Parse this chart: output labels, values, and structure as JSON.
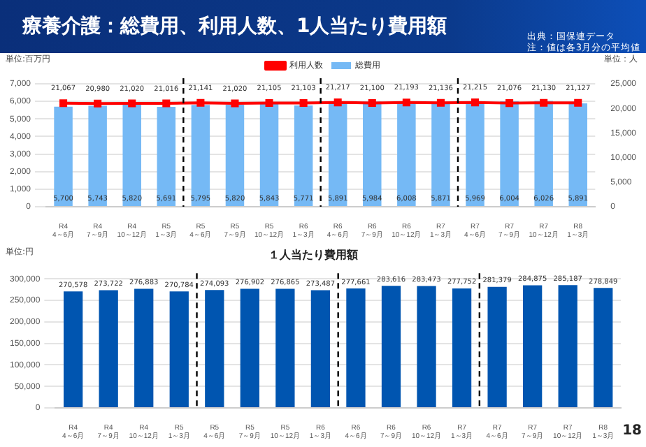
{
  "chart_data": [
    {
      "type": "bar",
      "title": "療養介護：総費用、利用人数、1人当たり費用額",
      "ylabel": "単位:百万円",
      "y2label": "単位：人",
      "annotations": [
        "出典：国保連データ",
        "注：値は各3月分の平均値"
      ],
      "categories": [
        "R4 4～6月",
        "R4 7～9月",
        "R4 10～12月",
        "R5 1～3月",
        "R5 4～6月",
        "R5 7～9月",
        "R5 10～12月",
        "R6 1～3月",
        "R6 4～6月",
        "R6 7～9月",
        "R6 10～12月",
        "R7 1～3月",
        "R7 4～6月",
        "R7 7～9月",
        "R7 10～12月",
        "R8 1～3月"
      ],
      "series": [
        {
          "name": "総費用",
          "type": "bar",
          "color": "#75b9f5",
          "values": [
            5700,
            5743,
            5820,
            5691,
            5795,
            5820,
            5843,
            5771,
            5891,
            5984,
            6008,
            5871,
            5969,
            6004,
            6026,
            5891
          ],
          "value_labels": [
            "5,700",
            "5,743",
            "5,820",
            "5,691",
            "5,795",
            "5,820",
            "5,843",
            "5,771",
            "5,891",
            "5,984",
            "6,008",
            "5,871",
            "5,969",
            "6,004",
            "6,026",
            "5,891"
          ]
        },
        {
          "name": "利用人数",
          "type": "line",
          "axis": "y2",
          "color": "#ff0000",
          "values": [
            21067,
            20980,
            21020,
            21016,
            21141,
            21020,
            21105,
            21103,
            21217,
            21100,
            21193,
            21136,
            21215,
            21076,
            21130,
            21127
          ],
          "value_labels": [
            "21,067",
            "20,980",
            "21,020",
            "21,016",
            "21,141",
            "21,020",
            "21,105",
            "21,103",
            "21,217",
            "21,100",
            "21,193",
            "21,136",
            "21,215",
            "21,076",
            "21,130",
            "21,127"
          ]
        }
      ],
      "ylim": [
        0,
        7000
      ],
      "yticks": [
        0,
        {
          "value": 1000,
          "label": "1,000"
        },
        {
          "value": 2000,
          "label": "2,000"
        },
        {
          "value": 3000,
          "label": "3,000"
        },
        {
          "value": 4000,
          "label": "4,000"
        },
        {
          "value": 5000,
          "label": "5,000"
        },
        {
          "value": 6000,
          "label": "6,000"
        },
        {
          "value": 7000,
          "label": "7,000"
        }
      ],
      "y2lim": [
        0,
        25000
      ],
      "y2ticks": [
        0,
        {
          "value": 5000,
          "label": "5,000"
        },
        {
          "value": 10000,
          "label": "10,000"
        },
        {
          "value": 15000,
          "label": "15,000"
        },
        {
          "value": 20000,
          "label": "20,000"
        },
        {
          "value": 25000,
          "label": "25,000"
        }
      ],
      "grid": "y",
      "legend": "top",
      "marker": "square",
      "line_style": "solid"
    },
    {
      "type": "bar",
      "title": "１人当たり費用額",
      "ylabel": "単位:円",
      "annotations": [
        "18"
      ],
      "categories": [
        "R4 4～6月",
        "R4 7～9月",
        "R4 10～12月",
        "R5 1～3月",
        "R5 4～6月",
        "R5 7～9月",
        "R5 10～12月",
        "R6 1～3月",
        "R6 4～6月",
        "R6 7～9月",
        "R6 10～12月",
        "R7 1～3月",
        "R7 4～6月",
        "R7 7～9月",
        "R7 10～12月",
        "R8 1～3月"
      ],
      "series": [
        {
          "color": "#0055b0",
          "values": [
            270578,
            273722,
            276883,
            270784,
            274093,
            276902,
            276865,
            273487,
            277661,
            283616,
            283473,
            277752,
            281379,
            284875,
            285187,
            278849
          ],
          "value_labels": [
            "270,578",
            "273,722",
            "276,883",
            "270,784",
            "274,093",
            "276,902",
            "276,865",
            "273,487",
            "277,661",
            "283,616",
            "283,473",
            "277,752",
            "281,379",
            "284,875",
            "285,187",
            "278,849"
          ]
        }
      ],
      "ylim": [
        0,
        300000
      ],
      "yticks": [
        0,
        {
          "value": 50000,
          "label": "50,000"
        },
        {
          "value": 100000,
          "label": "100,000"
        },
        {
          "value": 150000,
          "label": "150,000"
        },
        {
          "value": 200000,
          "label": "200,000"
        },
        {
          "value": 250000,
          "label": "250,000"
        },
        {
          "value": 300000,
          "label": "300,000"
        }
      ],
      "grid": "y",
      "legend": false
    }
  ]
}
